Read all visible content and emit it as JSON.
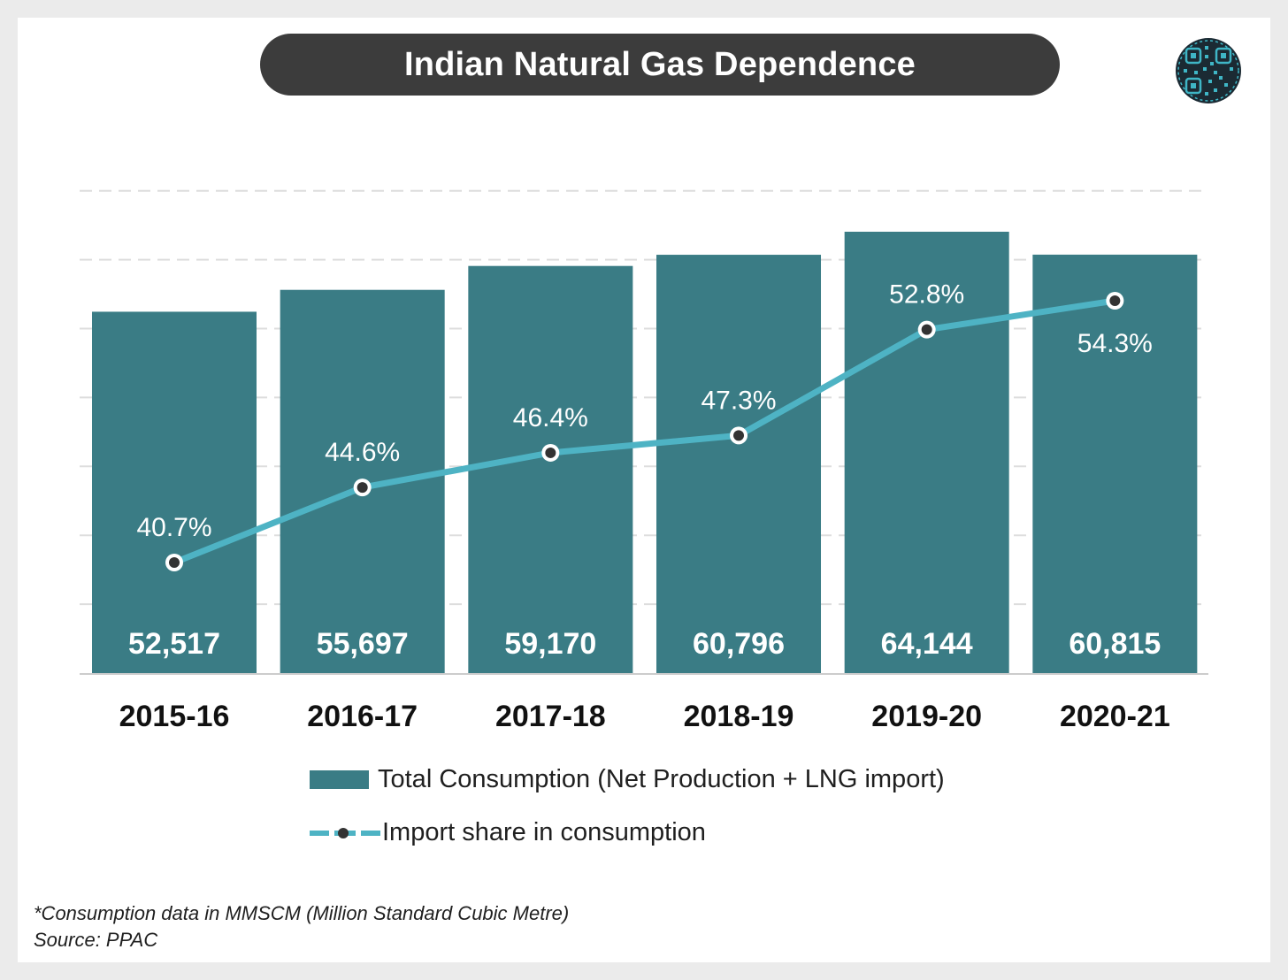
{
  "header": {
    "title": "Indian Natural Gas Dependence"
  },
  "logo": {
    "icon": "circuit-qr-logo-icon",
    "colors": [
      "#1b2a33",
      "#3fb6c6"
    ]
  },
  "colors": {
    "bar": "#3a7c85",
    "line": "#4eb3c4",
    "marker": "#333333",
    "gridline": "#dddddd"
  },
  "chart_data": {
    "type": "bar",
    "categories": [
      "2015-16",
      "2016-17",
      "2017-18",
      "2018-19",
      "2019-20",
      "2020-21"
    ],
    "series": [
      {
        "name": "Total Consumption (Net Production + LNG import)",
        "type": "bar",
        "values": [
          52517,
          55697,
          59170,
          60796,
          64144,
          60815
        ],
        "labels": [
          "52,517",
          "55,697",
          "59,170",
          "60,796",
          "64,144",
          "60,815"
        ]
      },
      {
        "name": "Import share in consumption",
        "type": "line",
        "values": [
          40.7,
          44.6,
          46.4,
          47.3,
          52.8,
          54.3
        ],
        "labels": [
          "40.7%",
          "44.6%",
          "46.4%",
          "47.3%",
          "52.8%",
          "54.3%"
        ]
      }
    ],
    "grid": true,
    "legend": "bottom"
  },
  "legend": {
    "bar_label": "Total Consumption (Net Production + LNG import)",
    "line_label": "Import share in consumption"
  },
  "notes": {
    "footnote": "*Consumption data in MMSCM (Million Standard Cubic Metre)",
    "source": "Source: PPAC"
  }
}
